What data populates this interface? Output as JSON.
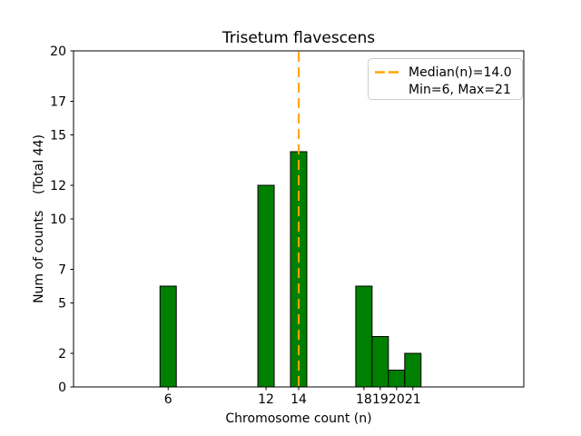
{
  "chart_data": {
    "type": "bar",
    "title": "Trisetum flavescens",
    "xlabel": "Chromosome count (n)",
    "ylabel": "Num of counts    (Total 44)",
    "total_label": "Total 44",
    "x": [
      6,
      12,
      14,
      18,
      19,
      20,
      21
    ],
    "values": [
      6,
      12,
      14,
      6,
      3,
      1,
      2
    ],
    "total": 44,
    "bar_width": 1.0,
    "bar_color": "#008000",
    "bar_edge_color": "#000000",
    "median_line": {
      "x": 14.0,
      "color": "#FFA500",
      "style": "dashed"
    },
    "xticks": [
      6,
      12,
      14,
      18,
      19,
      20,
      21
    ],
    "yticks": [
      0,
      2,
      5,
      7,
      10,
      12,
      15,
      17,
      20
    ],
    "xlim": [
      0.2,
      27.8
    ],
    "ylim": [
      0,
      20
    ],
    "grid": false,
    "legend": {
      "position": "upper right",
      "entries": [
        {
          "label": "Median(n)=14.0",
          "marker": "orange-dashed-line"
        },
        {
          "label": "Min=6, Max=21",
          "marker": "none"
        }
      ]
    }
  }
}
